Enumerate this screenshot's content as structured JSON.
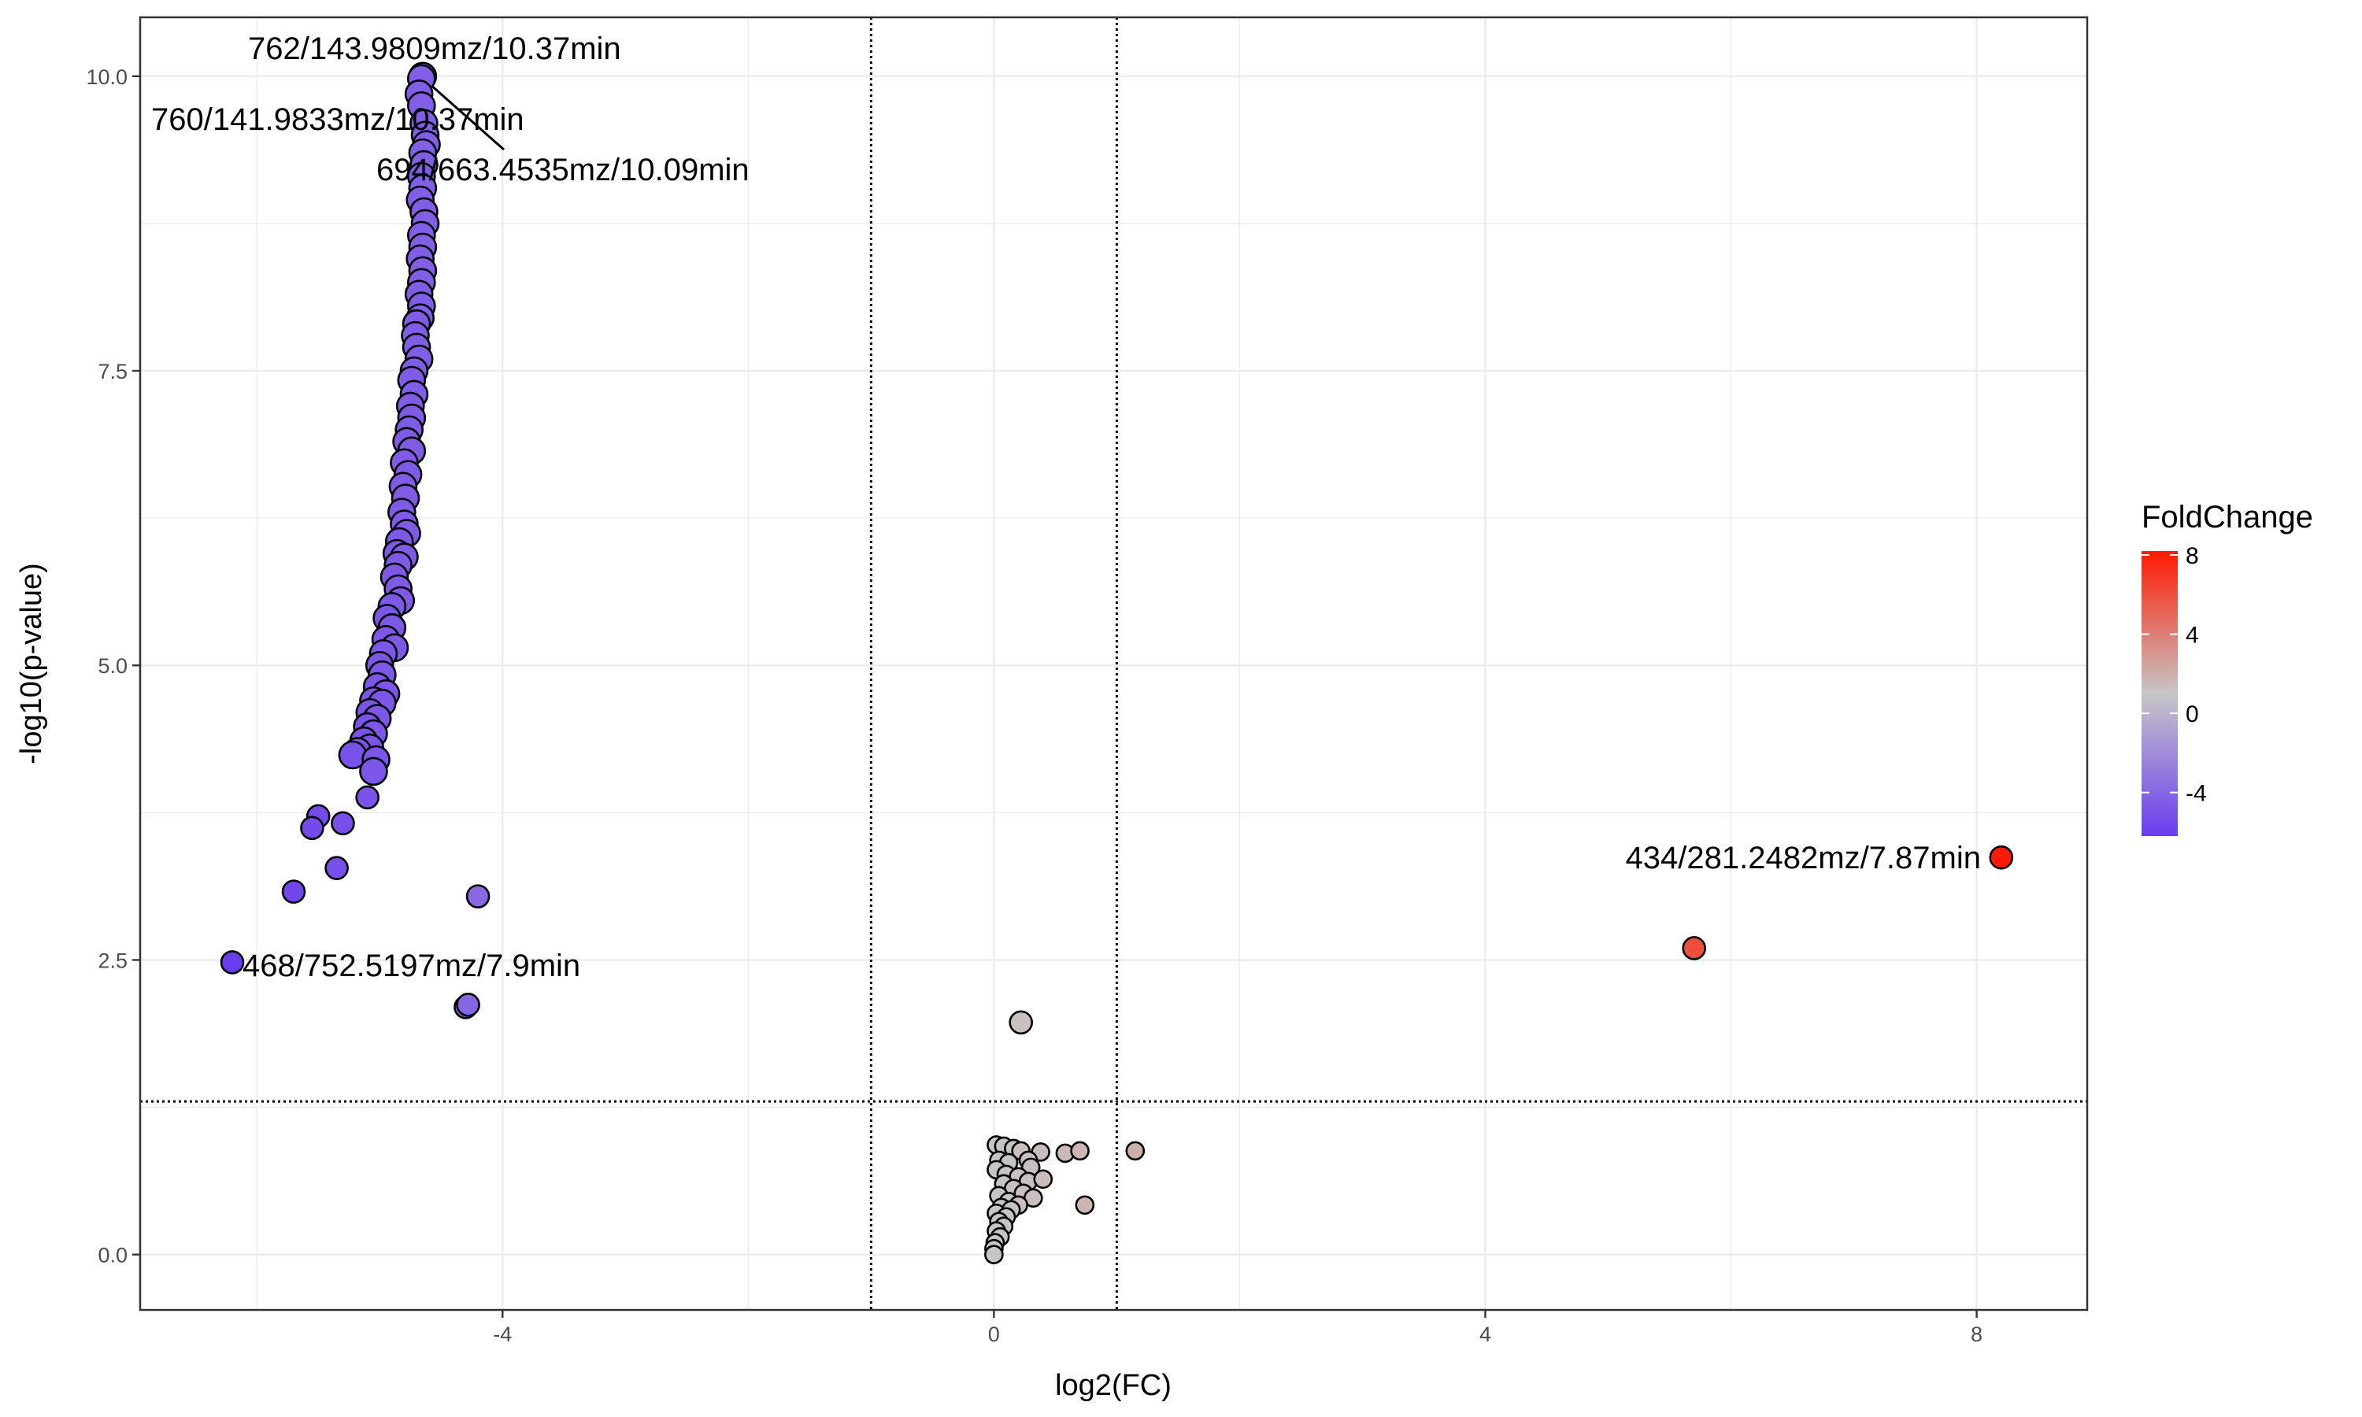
{
  "chart_data": {
    "type": "scatter",
    "title": "",
    "xlabel": "log2(FC)",
    "ylabel": "-log10(p-value)",
    "xlim": [
      -6.95,
      8.9
    ],
    "ylim": [
      -0.47,
      10.5
    ],
    "x_ticks": [
      -4,
      0,
      4,
      8
    ],
    "x_tick_labels": [
      "-4",
      "0",
      "4",
      "8"
    ],
    "y_ticks": [
      0,
      2.5,
      5,
      7.5,
      10
    ],
    "y_tick_labels": [
      "0.0",
      "2.5",
      "5.0",
      "7.5",
      "10.0"
    ],
    "grid": true,
    "thresholds": {
      "vlines": [
        -1,
        1
      ],
      "hline": 1.3
    },
    "color_scale": {
      "title": "FoldChange",
      "min": -6.2,
      "max": 8.2,
      "low_color": "#6a3cf0",
      "mid_color": "#c6c6c6",
      "high_color": "#ff1a00",
      "ticks": [
        8,
        4,
        0,
        -4
      ],
      "tick_labels": [
        "8",
        "4",
        "0",
        "-4"
      ],
      "placement": "right"
    },
    "points": [
      {
        "x": -4.65,
        "y": 10.0
      },
      {
        "x": -4.66,
        "y": 9.98
      },
      {
        "x": -4.68,
        "y": 9.85
      },
      {
        "x": -4.66,
        "y": 9.75
      },
      {
        "x": -4.64,
        "y": 9.6
      },
      {
        "x": -4.63,
        "y": 9.5
      },
      {
        "x": -4.62,
        "y": 9.42
      },
      {
        "x": -4.65,
        "y": 9.35
      },
      {
        "x": -4.64,
        "y": 9.25
      },
      {
        "x": -4.66,
        "y": 9.15
      },
      {
        "x": -4.65,
        "y": 9.05
      },
      {
        "x": -4.67,
        "y": 8.95
      },
      {
        "x": -4.64,
        "y": 8.85
      },
      {
        "x": -4.63,
        "y": 8.75
      },
      {
        "x": -4.66,
        "y": 8.65
      },
      {
        "x": -4.65,
        "y": 8.55
      },
      {
        "x": -4.67,
        "y": 8.45
      },
      {
        "x": -4.65,
        "y": 8.35
      },
      {
        "x": -4.66,
        "y": 8.25
      },
      {
        "x": -4.68,
        "y": 8.15
      },
      {
        "x": -4.66,
        "y": 8.05
      },
      {
        "x": -4.67,
        "y": 7.95
      },
      {
        "x": -4.7,
        "y": 7.9
      },
      {
        "x": -4.71,
        "y": 7.8
      },
      {
        "x": -4.7,
        "y": 7.7
      },
      {
        "x": -4.68,
        "y": 7.6
      },
      {
        "x": -4.72,
        "y": 7.5
      },
      {
        "x": -4.74,
        "y": 7.42
      },
      {
        "x": -4.72,
        "y": 7.3
      },
      {
        "x": -4.75,
        "y": 7.2
      },
      {
        "x": -4.74,
        "y": 7.1
      },
      {
        "x": -4.76,
        "y": 7.0
      },
      {
        "x": -4.78,
        "y": 6.9
      },
      {
        "x": -4.74,
        "y": 6.82
      },
      {
        "x": -4.8,
        "y": 6.72
      },
      {
        "x": -4.77,
        "y": 6.62
      },
      {
        "x": -4.81,
        "y": 6.52
      },
      {
        "x": -4.79,
        "y": 6.42
      },
      {
        "x": -4.82,
        "y": 6.3
      },
      {
        "x": -4.8,
        "y": 6.2
      },
      {
        "x": -4.78,
        "y": 6.12
      },
      {
        "x": -4.84,
        "y": 6.05
      },
      {
        "x": -4.86,
        "y": 5.95
      },
      {
        "x": -4.8,
        "y": 5.92
      },
      {
        "x": -4.85,
        "y": 5.85
      },
      {
        "x": -4.88,
        "y": 5.75
      },
      {
        "x": -4.85,
        "y": 5.65
      },
      {
        "x": -4.83,
        "y": 5.55
      },
      {
        "x": -4.9,
        "y": 5.5
      },
      {
        "x": -4.94,
        "y": 5.4
      },
      {
        "x": -4.9,
        "y": 5.32
      },
      {
        "x": -4.95,
        "y": 5.22
      },
      {
        "x": -4.88,
        "y": 5.15
      },
      {
        "x": -4.97,
        "y": 5.1
      },
      {
        "x": -5.0,
        "y": 5.0
      },
      {
        "x": -4.98,
        "y": 4.92
      },
      {
        "x": -5.02,
        "y": 4.82
      },
      {
        "x": -4.95,
        "y": 4.76
      },
      {
        "x": -5.05,
        "y": 4.7
      },
      {
        "x": -4.98,
        "y": 4.68
      },
      {
        "x": -5.08,
        "y": 4.6
      },
      {
        "x": -5.02,
        "y": 4.55
      },
      {
        "x": -5.1,
        "y": 4.48
      },
      {
        "x": -5.05,
        "y": 4.42
      },
      {
        "x": -5.13,
        "y": 4.36
      },
      {
        "x": -5.08,
        "y": 4.3
      },
      {
        "x": -5.18,
        "y": 4.27
      },
      {
        "x": -5.22,
        "y": 4.24
      },
      {
        "x": -5.03,
        "y": 4.2
      },
      {
        "x": -5.05,
        "y": 4.1
      },
      {
        "x": -5.1,
        "y": 3.88
      },
      {
        "x": -5.3,
        "y": 3.66
      },
      {
        "x": -5.5,
        "y": 3.72
      },
      {
        "x": -5.55,
        "y": 3.62
      },
      {
        "x": -5.35,
        "y": 3.28
      },
      {
        "x": -5.7,
        "y": 3.08
      },
      {
        "x": -4.2,
        "y": 3.04
      },
      {
        "x": -6.2,
        "y": 2.48
      },
      {
        "x": -4.3,
        "y": 2.1
      },
      {
        "x": -4.28,
        "y": 2.12
      },
      {
        "x": 0.22,
        "y": 1.97
      },
      {
        "x": 5.7,
        "y": 2.6
      },
      {
        "x": 8.2,
        "y": 3.37
      },
      {
        "x": 0.02,
        "y": 0.93
      },
      {
        "x": 0.08,
        "y": 0.92
      },
      {
        "x": 0.16,
        "y": 0.9
      },
      {
        "x": 0.22,
        "y": 0.88
      },
      {
        "x": 0.38,
        "y": 0.87
      },
      {
        "x": 0.58,
        "y": 0.86
      },
      {
        "x": 0.7,
        "y": 0.88
      },
      {
        "x": 1.15,
        "y": 0.88
      },
      {
        "x": 0.04,
        "y": 0.8
      },
      {
        "x": 0.12,
        "y": 0.78
      },
      {
        "x": 0.28,
        "y": 0.8
      },
      {
        "x": 0.3,
        "y": 0.74
      },
      {
        "x": 0.02,
        "y": 0.72
      },
      {
        "x": 0.1,
        "y": 0.68
      },
      {
        "x": 0.2,
        "y": 0.66
      },
      {
        "x": 0.28,
        "y": 0.62
      },
      {
        "x": 0.4,
        "y": 0.64
      },
      {
        "x": 0.08,
        "y": 0.6
      },
      {
        "x": 0.16,
        "y": 0.56
      },
      {
        "x": 0.24,
        "y": 0.52
      },
      {
        "x": 0.32,
        "y": 0.48
      },
      {
        "x": 0.04,
        "y": 0.5
      },
      {
        "x": 0.12,
        "y": 0.45
      },
      {
        "x": 0.2,
        "y": 0.42
      },
      {
        "x": 0.06,
        "y": 0.4
      },
      {
        "x": 0.14,
        "y": 0.38
      },
      {
        "x": 0.02,
        "y": 0.35
      },
      {
        "x": 0.1,
        "y": 0.32
      },
      {
        "x": 0.04,
        "y": 0.28
      },
      {
        "x": 0.08,
        "y": 0.24
      },
      {
        "x": 0.02,
        "y": 0.2
      },
      {
        "x": 0.05,
        "y": 0.15
      },
      {
        "x": 0.01,
        "y": 0.1
      },
      {
        "x": 0.0,
        "y": 0.05
      },
      {
        "x": 0.0,
        "y": 0.0
      },
      {
        "x": 0.74,
        "y": 0.42
      }
    ],
    "annotations": [
      {
        "text": "762/143.9809mz/10.37min",
        "x": -4.65,
        "y": 10.0
      },
      {
        "text": "760/141.9833mz/10.37min",
        "x": -4.66,
        "y": 9.75
      },
      {
        "text": "694/663.4535mz/10.09min",
        "x": -4.64,
        "y": 9.45
      },
      {
        "text": "468/752.5197mz/7.9min",
        "x": -6.2,
        "y": 2.48
      },
      {
        "text": "434/281.2482mz/7.87min",
        "x": 8.2,
        "y": 3.37
      }
    ]
  }
}
